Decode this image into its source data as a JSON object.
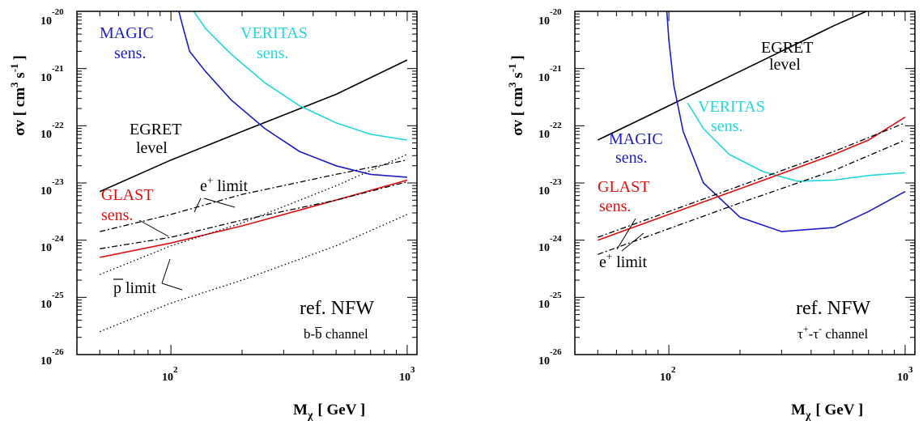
{
  "chart_data": [
    {
      "type": "line",
      "xlabel_main": "M",
      "xlabel_sub": "χ",
      "xlabel_unit": "[ GeV ]",
      "ylabel": "σv [ cm",
      "ylabel_sup1": "3",
      "ylabel_mid": " s",
      "ylabel_sup2": "-1",
      "ylabel_end": "]",
      "x_scale": "log",
      "y_scale": "log",
      "xlim": [
        40,
        1100
      ],
      "ylim": [
        1e-26,
        1e-20
      ],
      "x_ticks": [
        {
          "base": "10",
          "exp": "2",
          "value": 100
        },
        {
          "base": "10",
          "exp": "3",
          "value": 1000
        }
      ],
      "y_ticks": [
        {
          "base": "10",
          "exp": "-20",
          "value": -20
        },
        {
          "base": "10",
          "exp": "-21",
          "value": -21
        },
        {
          "base": "10",
          "exp": "-22",
          "value": -22
        },
        {
          "base": "10",
          "exp": "-23",
          "value": -23
        },
        {
          "base": "10",
          "exp": "-24",
          "value": -24
        },
        {
          "base": "10",
          "exp": "-25",
          "value": -25
        },
        {
          "base": "10",
          "exp": "-26",
          "value": -26
        }
      ],
      "ref_title": "ref. NFW",
      "channel_label": "b-b̅ channel",
      "series": [
        {
          "name": "EGRET level",
          "color": "#000000",
          "dash": "solid",
          "x": [
            50,
            100,
            200,
            500,
            1000
          ],
          "log_y": [
            -23.15,
            -22.6,
            -22.1,
            -21.45,
            -20.85
          ]
        },
        {
          "name": "MAGIC sens.",
          "color": "#1c1cc8",
          "dash": "solid",
          "x": [
            108,
            112,
            120,
            140,
            180,
            250,
            350,
            500,
            700,
            1000
          ],
          "log_y": [
            -20.0,
            -20.25,
            -20.7,
            -21.05,
            -21.55,
            -22.05,
            -22.45,
            -22.7,
            -22.85,
            -22.9
          ]
        },
        {
          "name": "VERITAS sens.",
          "color": "#22d6dc",
          "dash": "solid",
          "x": [
            125,
            140,
            180,
            250,
            350,
            500,
            700,
            1000
          ],
          "log_y": [
            -20.0,
            -20.3,
            -20.75,
            -21.25,
            -21.65,
            -21.95,
            -22.15,
            -22.25
          ]
        },
        {
          "name": "GLAST sens.",
          "color": "#e01010",
          "dash": "solid",
          "x": [
            50,
            100,
            200,
            500,
            1000
          ],
          "log_y": [
            -24.3,
            -24.05,
            -23.75,
            -23.3,
            -22.95
          ]
        },
        {
          "name": "e+ limit upper",
          "color": "#000000",
          "dash": "dashdot",
          "x": [
            50,
            100,
            200,
            500,
            1000
          ],
          "log_y": [
            -23.85,
            -23.55,
            -23.2,
            -22.85,
            -22.6
          ]
        },
        {
          "name": "e+ limit lower",
          "color": "#000000",
          "dash": "dashdot",
          "x": [
            50,
            100,
            200,
            500,
            1000
          ],
          "log_y": [
            -24.15,
            -23.95,
            -23.65,
            -23.3,
            -22.98
          ]
        },
        {
          "name": "p limit upper",
          "color": "#000000",
          "dash": "dot",
          "x": [
            50,
            100,
            200,
            500,
            1000
          ],
          "log_y": [
            -24.6,
            -24.1,
            -23.7,
            -23.05,
            -22.5
          ]
        },
        {
          "name": "p limit lower",
          "color": "#000000",
          "dash": "dot",
          "x": [
            50,
            100,
            200,
            500,
            1000
          ],
          "log_y": [
            -25.6,
            -25.1,
            -24.7,
            -24.1,
            -23.55
          ]
        }
      ],
      "annotations": [
        {
          "id": "magic",
          "lines": [
            "MAGIC",
            "sens."
          ],
          "color": "#1c1cc8"
        },
        {
          "id": "veritas",
          "lines": [
            "VERITAS",
            "sens."
          ],
          "color": "#22d6dc"
        },
        {
          "id": "egret",
          "lines": [
            "EGRET",
            "level"
          ],
          "color": "#000000"
        },
        {
          "id": "glast",
          "lines": [
            "GLAST",
            "sens."
          ],
          "color": "#e01010"
        },
        {
          "id": "elimit",
          "lines": [
            "e",
            "+",
            " limit"
          ],
          "color": "#000000"
        },
        {
          "id": "plimit",
          "lines": [
            "p",
            " limit"
          ],
          "color": "#000000"
        }
      ]
    },
    {
      "type": "line",
      "xlabel_main": "M",
      "xlabel_sub": "χ",
      "xlabel_unit": "[ GeV ]",
      "ylabel": "σv [ cm",
      "ylabel_sup1": "3",
      "ylabel_mid": " s",
      "ylabel_sup2": "-1",
      "ylabel_end": "]",
      "x_scale": "log",
      "y_scale": "log",
      "xlim": [
        40,
        1100
      ],
      "ylim": [
        1e-26,
        1e-20
      ],
      "x_ticks": [
        {
          "base": "10",
          "exp": "2",
          "value": 100
        },
        {
          "base": "10",
          "exp": "3",
          "value": 1000
        }
      ],
      "y_ticks": [
        {
          "base": "10",
          "exp": "-20",
          "value": -20
        },
        {
          "base": "10",
          "exp": "-21",
          "value": -21
        },
        {
          "base": "10",
          "exp": "-22",
          "value": -22
        },
        {
          "base": "10",
          "exp": "-23",
          "value": -23
        },
        {
          "base": "10",
          "exp": "-24",
          "value": -24
        },
        {
          "base": "10",
          "exp": "-25",
          "value": -25
        },
        {
          "base": "10",
          "exp": "-26",
          "value": -26
        }
      ],
      "ref_title": "ref. NFW",
      "channel_label_base": "τ",
      "channel_label_sup1": "+",
      "channel_label_dash": "-τ",
      "channel_label_sup2": "-",
      "channel_label_end": " channel",
      "series": [
        {
          "name": "EGRET level",
          "color": "#000000",
          "dash": "solid",
          "x": [
            50,
            100,
            200,
            500,
            1000
          ],
          "log_y": [
            -22.25,
            -21.65,
            -21.05,
            -20.25,
            -19.7
          ]
        },
        {
          "name": "MAGIC sens.",
          "color": "#1c1cc8",
          "dash": "solid",
          "x": [
            98,
            100,
            105,
            115,
            140,
            200,
            300,
            500,
            700,
            1000
          ],
          "log_y": [
            -20.0,
            -20.5,
            -21.3,
            -22.1,
            -23.0,
            -23.6,
            -23.85,
            -23.78,
            -23.5,
            -23.15
          ]
        },
        {
          "name": "VERITAS sens.",
          "color": "#22d6dc",
          "dash": "solid",
          "x": [
            120,
            140,
            180,
            250,
            350,
            500,
            700,
            1000
          ],
          "log_y": [
            -21.6,
            -22.05,
            -22.5,
            -22.8,
            -22.97,
            -22.95,
            -22.87,
            -22.82
          ]
        },
        {
          "name": "GLAST sens.",
          "color": "#e01010",
          "dash": "solid",
          "x": [
            50,
            100,
            200,
            500,
            700,
            1000
          ],
          "log_y": [
            -24.0,
            -23.55,
            -23.1,
            -22.5,
            -22.25,
            -21.85
          ]
        },
        {
          "name": "e+ limit upper",
          "color": "#000000",
          "dash": "dashdot",
          "x": [
            50,
            100,
            200,
            500,
            1000
          ],
          "log_y": [
            -23.95,
            -23.5,
            -23.05,
            -22.45,
            -21.95
          ]
        },
        {
          "name": "e+ limit lower",
          "color": "#000000",
          "dash": "dashdot",
          "x": [
            50,
            100,
            200,
            500,
            1000
          ],
          "log_y": [
            -24.25,
            -23.8,
            -23.35,
            -22.78,
            -22.25
          ]
        }
      ],
      "annotations": [
        {
          "id": "egret",
          "lines": [
            "EGRET",
            "level"
          ],
          "color": "#000000"
        },
        {
          "id": "veritas",
          "lines": [
            "VERITAS",
            "sens."
          ],
          "color": "#22d6dc"
        },
        {
          "id": "magic",
          "lines": [
            "MAGIC",
            "sens."
          ],
          "color": "#1c1cc8"
        },
        {
          "id": "glast",
          "lines": [
            "GLAST",
            "sens."
          ],
          "color": "#e01010"
        },
        {
          "id": "elimit",
          "lines": [
            "e",
            "+",
            " limit"
          ],
          "color": "#000000"
        }
      ]
    }
  ]
}
